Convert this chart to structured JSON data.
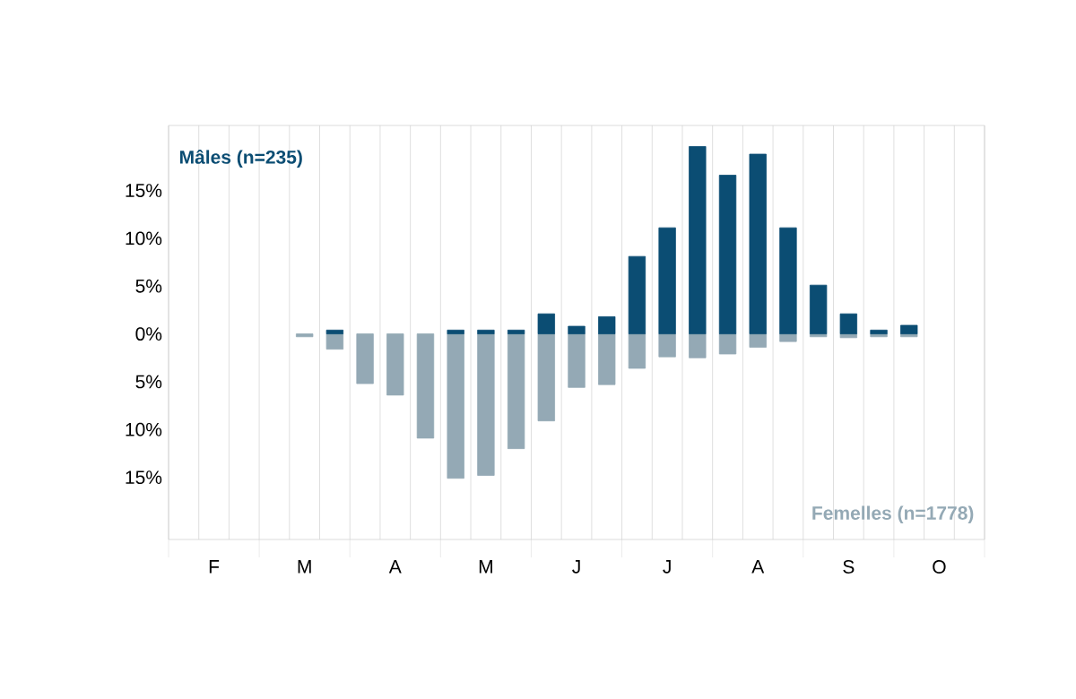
{
  "chart_data": {
    "type": "bar",
    "categories": [
      null,
      "F",
      null,
      null,
      "M",
      null,
      null,
      "A",
      null,
      null,
      "M",
      null,
      null,
      "J",
      null,
      null,
      "J",
      null,
      null,
      "A",
      null,
      null,
      "S",
      null,
      null,
      "O",
      null
    ],
    "series": [
      {
        "name": "Mâles (n=235)",
        "color": "#0b4d73",
        "values": [
          0,
          0,
          0,
          0,
          0,
          0.4,
          0,
          0,
          0,
          0.4,
          0.4,
          0.4,
          2.1,
          0.8,
          1.8,
          8.1,
          11.1,
          19.6,
          16.6,
          18.8,
          11.1,
          5.1,
          2.1,
          0.4,
          0.9,
          0,
          0
        ]
      },
      {
        "name": "Femelles (n=1778)",
        "color": "#94a9b5",
        "values": [
          0,
          0,
          0,
          0,
          -0.3,
          -1.6,
          -5.2,
          -6.4,
          -10.9,
          -15.1,
          -14.8,
          -12.0,
          -9.1,
          -5.6,
          -5.3,
          -3.6,
          -2.4,
          -2.5,
          -2.1,
          -1.4,
          -0.8,
          -0.3,
          -0.4,
          -0.3,
          -0.3,
          0,
          0
        ]
      }
    ],
    "ylim": [
      -21.5,
      21.8
    ],
    "yticks": [
      {
        "value": 15,
        "label": "15%"
      },
      {
        "value": 10,
        "label": "10%"
      },
      {
        "value": 5,
        "label": "5%"
      },
      {
        "value": 0,
        "label": "0%"
      },
      {
        "value": -5,
        "label": "5%"
      },
      {
        "value": -10,
        "label": "10%"
      },
      {
        "value": -15,
        "label": "15%"
      }
    ],
    "stacked": true,
    "grid": "x"
  }
}
